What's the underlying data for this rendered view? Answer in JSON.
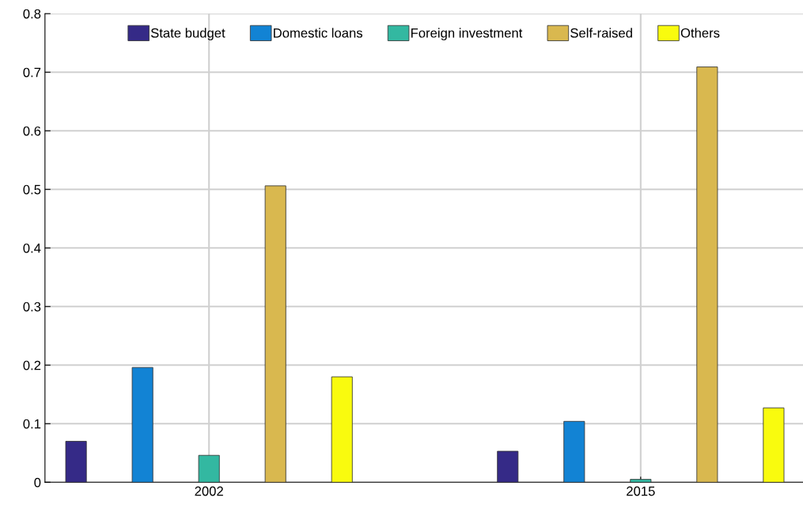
{
  "chart_data": {
    "type": "bar",
    "categories": [
      "2002",
      "2015"
    ],
    "series": [
      {
        "name": "State budget",
        "color": "#352a87",
        "values": [
          0.07,
          0.053
        ]
      },
      {
        "name": "Domestic loans",
        "color": "#1283d4",
        "values": [
          0.196,
          0.104
        ]
      },
      {
        "name": "Foreign investment",
        "color": "#33b8a1",
        "values": [
          0.046,
          0.005
        ]
      },
      {
        "name": "Self-raised",
        "color": "#d9b84f",
        "values": [
          0.506,
          0.709
        ]
      },
      {
        "name": "Others",
        "color": "#f9fb0e",
        "values": [
          0.18,
          0.127
        ]
      }
    ],
    "ylim": [
      0,
      0.8
    ],
    "yticks": [
      0,
      0.1,
      0.2,
      0.3,
      0.4,
      0.5,
      0.6,
      0.7,
      0.8
    ],
    "grid": true,
    "legend": "top"
  }
}
